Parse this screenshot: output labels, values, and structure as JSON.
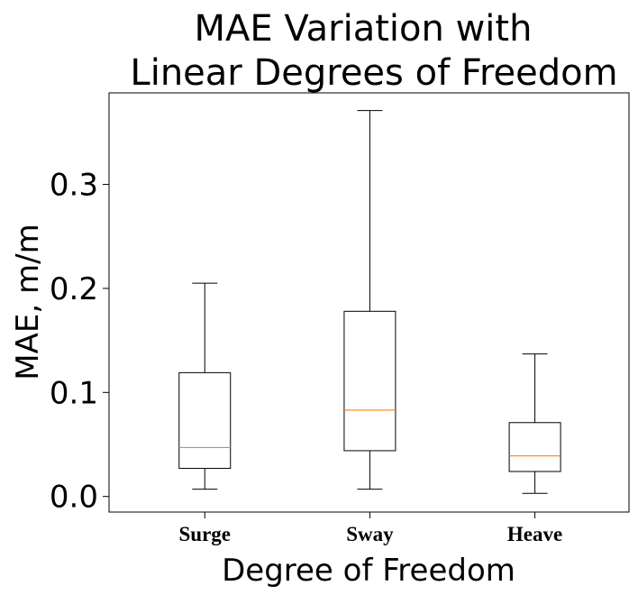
{
  "chart_data": {
    "type": "box",
    "title_lines": [
      "MAE Variation with",
      "Linear Degrees of Freedom"
    ],
    "xlabel": "Degree of Freedom",
    "ylabel": "MAE, m/m",
    "categories": [
      "Surge",
      "Sway",
      "Heave"
    ],
    "yticks": [
      0.0,
      0.1,
      0.2,
      0.3
    ],
    "ytick_labels": [
      "0.0",
      "0.1",
      "0.2",
      "0.3"
    ],
    "ylim": [
      -0.015,
      0.388
    ],
    "grid": false,
    "boxes": [
      {
        "category": "Surge",
        "whisker_low": 0.007,
        "q1": 0.027,
        "median": 0.047,
        "q3": 0.119,
        "whisker_high": 0.205
      },
      {
        "category": "Sway",
        "whisker_low": 0.007,
        "q1": 0.044,
        "median": 0.083,
        "q3": 0.178,
        "whisker_high": 0.371
      },
      {
        "category": "Heave",
        "whisker_low": 0.003,
        "q1": 0.024,
        "median": 0.039,
        "q3": 0.071,
        "whisker_high": 0.137
      }
    ],
    "colors": {
      "box": "#000000",
      "median": "#ff7f0e"
    }
  }
}
